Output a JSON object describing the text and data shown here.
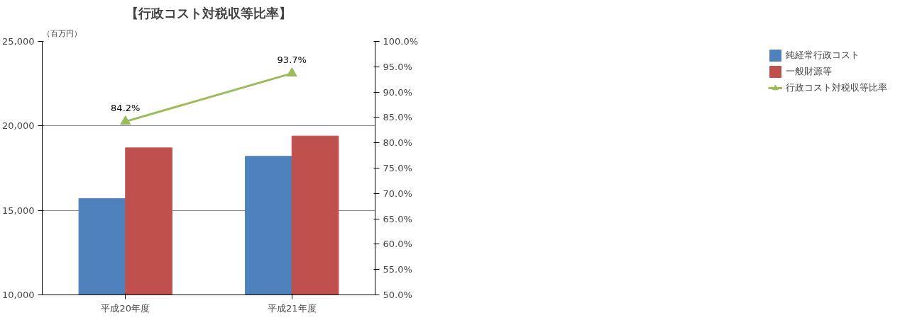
{
  "chart_data": {
    "type": "bar",
    "title": "【行政コスト対税収等比率】",
    "ylabel": "（百万円）",
    "categories": [
      "平成20年度",
      "平成21年度"
    ],
    "series": [
      {
        "name": "純経常行政コスト",
        "color": "#4f81bd",
        "values": [
          15700,
          18200
        ]
      },
      {
        "name": "一般財源等",
        "color": "#c0504d",
        "values": [
          18700,
          19400
        ]
      },
      {
        "name": "行政コスト対税収等比率",
        "type": "line",
        "axis": "y2",
        "color": "#9bbb59",
        "marker": "triangle",
        "values": [
          84.2,
          93.7
        ],
        "value_labels": [
          "84.2%",
          "93.7%"
        ]
      }
    ],
    "ylim": [
      10000,
      25000
    ],
    "yticks": [
      {
        "value": 10000,
        "label": "10,000"
      },
      {
        "value": 15000,
        "label": "15,000"
      },
      {
        "value": 20000,
        "label": "20,000"
      },
      {
        "value": 25000,
        "label": "25,000"
      }
    ],
    "y2lim": [
      50,
      100
    ],
    "y2ticks": [
      {
        "value": 50,
        "label": "50.0%"
      },
      {
        "value": 55,
        "label": "55.0%"
      },
      {
        "value": 60,
        "label": "60.0%"
      },
      {
        "value": 65,
        "label": "65.0%"
      },
      {
        "value": 70,
        "label": "70.0%"
      },
      {
        "value": 75,
        "label": "75.0%"
      },
      {
        "value": 80,
        "label": "80.0%"
      },
      {
        "value": 85,
        "label": "85.0%"
      },
      {
        "value": 90,
        "label": "90.0%"
      },
      {
        "value": 95,
        "label": "95.0%"
      },
      {
        "value": 100,
        "label": "100.0%"
      }
    ],
    "grid": "y",
    "legend": "right"
  }
}
